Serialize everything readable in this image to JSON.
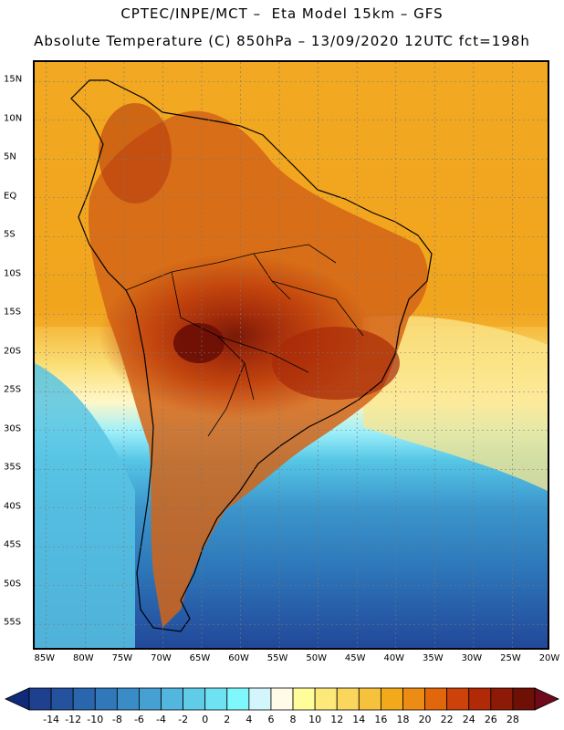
{
  "title": {
    "line1": "CPTEC/INPE/MCT –  Eta Model 15km – GFS",
    "line2": "Absolute Temperature (C) 850hPa – 13/09/2020 12UTC fct=198h"
  },
  "map": {
    "lat_ticks": [
      "15N",
      "10N",
      "5N",
      "EQ",
      "5S",
      "10S",
      "15S",
      "20S",
      "25S",
      "30S",
      "35S",
      "40S",
      "45S",
      "50S",
      "55S"
    ],
    "lon_ticks": [
      "85W",
      "80W",
      "75W",
      "70W",
      "65W",
      "60W",
      "55W",
      "50W",
      "45W",
      "40W",
      "35W",
      "30W",
      "25W",
      "20W"
    ],
    "lat_range": [
      17.5,
      -58.5
    ],
    "lon_range": [
      -86.5,
      -20
    ],
    "grid": "dotted"
  },
  "colorbar": {
    "ticks": [
      "-14",
      "-12",
      "-10",
      "-8",
      "-6",
      "-4",
      "-2",
      "0",
      "2",
      "4",
      "6",
      "8",
      "10",
      "12",
      "14",
      "16",
      "18",
      "20",
      "22",
      "24",
      "26",
      "28"
    ],
    "colors": [
      "#1f3f8f",
      "#24529e",
      "#2a66ae",
      "#3078ba",
      "#3a8cc6",
      "#46a0d2",
      "#52b6de",
      "#60cce8",
      "#6ee2f2",
      "#7ff8fd",
      "#d2f6fb",
      "#fffbe6",
      "#fffc9a",
      "#fde87a",
      "#fbd65c",
      "#f6c23c",
      "#f2aa1c",
      "#ec8c14",
      "#e2660c",
      "#cc420a",
      "#b02a08",
      "#8c1a06",
      "#6e1006"
    ],
    "low_arrow_color": "#0f2a78",
    "high_arrow_color": "#6e0a1a"
  }
}
